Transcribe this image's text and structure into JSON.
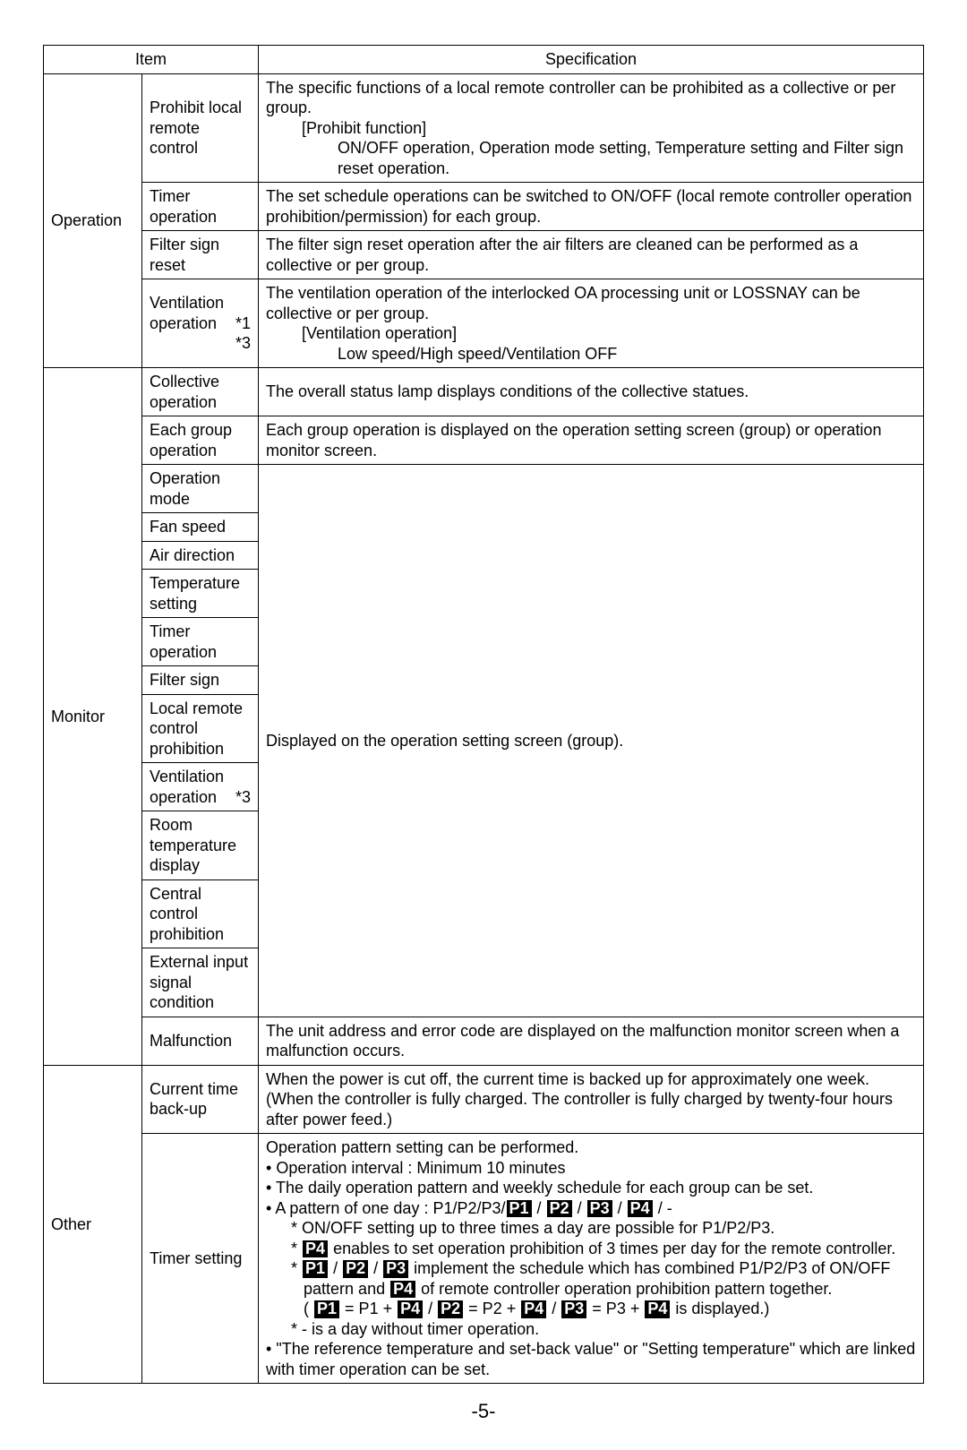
{
  "headers": {
    "item": "Item",
    "spec": "Specification"
  },
  "categories": {
    "operation": "Operation",
    "monitor": "Monitor",
    "other": "Other"
  },
  "rows": {
    "prohibit": {
      "sub": "Prohibit local remote control",
      "spec_l1": "The specific functions of a local remote controller can be prohibited as a collective or per group.",
      "spec_l2": "[Prohibit function]",
      "spec_l3": "ON/OFF operation, Operation mode setting, Temperature setting and Filter sign reset operation."
    },
    "timerop": {
      "sub": "Timer operation",
      "spec": "The set schedule operations can be switched to ON/OFF (local remote controller operation prohibition/permission) for each group."
    },
    "filter": {
      "sub": "Filter sign reset",
      "spec": "The filter sign reset operation after the air filters are cleaned can be performed as a collective or per group."
    },
    "vent": {
      "sub_l1": "Ventilation",
      "sub_l2a": "operation",
      "sub_l2b": "*1",
      "sub_l3": "*3",
      "spec_l1": "The ventilation operation of the interlocked OA processing unit or LOSSNAY can be collective or per group.",
      "spec_l2": "[Ventilation operation]",
      "spec_l3": "Low speed/High speed/Ventilation OFF"
    },
    "collop": {
      "sub": "Collective operation",
      "spec": "The overall status lamp displays conditions of the collective statues."
    },
    "eachgroup": {
      "sub": "Each group operation",
      "spec": "Each group operation is displayed on the operation setting screen (group) or operation monitor screen."
    },
    "monitor_list": {
      "opmode": "Operation mode",
      "fanspeed": "Fan speed",
      "airdir": "Air direction",
      "temp": "Temperature setting",
      "timer": "Timer operation",
      "filtersign": "Filter sign",
      "localremote": "Local remote control prohibition",
      "ventop_a": "Ventilation",
      "ventop_b": "operation",
      "ventop_c": "*3",
      "roomtemp": "Room temperature display",
      "central": "Central control prohibition",
      "external": "External input signal condition",
      "spec": "Displayed on the operation setting screen (group)."
    },
    "malfunction": {
      "sub": "Malfunction",
      "spec": "The unit address and error code are displayed on the malfunction monitor screen when a malfunction occurs."
    },
    "backup": {
      "sub": "Current time back-up",
      "spec": "When the power is cut off, the current time is backed up for approximately one week. (When the controller is fully charged. The controller is fully charged by twenty-four hours after power feed.)"
    },
    "timerset": {
      "sub": "Timer setting",
      "l1": "Operation pattern setting can be performed.",
      "l2": "• Operation interval : Minimum 10 minutes",
      "l3": "• The daily operation pattern and weekly schedule for each group can be set.",
      "l4_pre": "• A pattern of one day : P1/P2/P3/",
      "l4_p1": "P1",
      "l4_p2": "P2",
      "l4_p3": "P3",
      "l4_p4": "P4",
      "l4_post": " / -",
      "l5": "* ON/OFF setting up to three times a day are possible for P1/P2/P3.",
      "l6_pre": "* ",
      "l6_post": " enables to set operation prohibition of 3 times per day for the remote controller.",
      "l7_pre": "* ",
      "l7_mid": " implement the schedule which has combined P1/P2/P3 of ON/OFF",
      "l8_pre": "pattern and ",
      "l8_post": " of remote controller operation prohibition pattern together.",
      "l9_pre": "( ",
      "l9_a": " = P1 + ",
      "l9_b": " / ",
      "l9_c": " = P2 + ",
      "l9_d": " = P3 + ",
      "l9_post": " is displayed.)",
      "l10": "* - is a day without timer operation.",
      "l11": "• \"The reference temperature and set-back value\" or \"Setting temperature\" which are linked with timer operation can be set."
    }
  },
  "pagenum": "-5-"
}
